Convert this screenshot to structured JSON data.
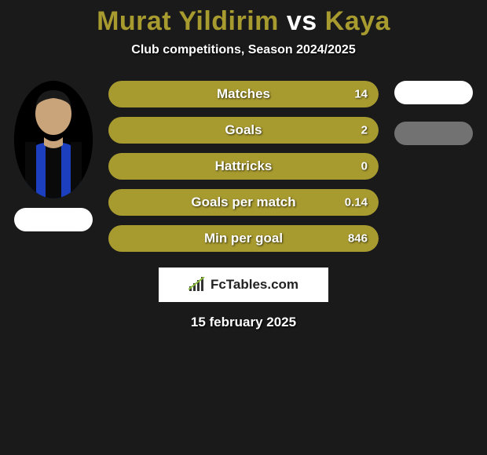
{
  "background_color": "#1a1a1a",
  "title": {
    "player1": "Murat Yildirim",
    "vs": "vs",
    "player2": "Kaya",
    "player1_color": "#a79a2f",
    "vs_color": "#ffffff",
    "player2_color": "#a79a2f",
    "fontsize": 34
  },
  "subtitle": {
    "text": "Club competitions, Season 2024/2025",
    "fontsize": 16,
    "color": "#ffffff"
  },
  "left_player": {
    "has_photo": true
  },
  "right_player": {
    "has_photo": false
  },
  "bar_style": {
    "height": 34,
    "radius": 17,
    "left_color": "#a79a2f",
    "right_color": "#a79a2f",
    "track_color": "#3a3a3a",
    "label_fontsize": 17,
    "value_fontsize": 15,
    "text_color": "#ffffff"
  },
  "stats": [
    {
      "label": "Matches",
      "left_value": "",
      "right_value": "14",
      "left_pct": 0,
      "right_pct": 100
    },
    {
      "label": "Goals",
      "left_value": "",
      "right_value": "2",
      "left_pct": 0,
      "right_pct": 100
    },
    {
      "label": "Hattricks",
      "left_value": "",
      "right_value": "0",
      "left_pct": 0,
      "right_pct": 100
    },
    {
      "label": "Goals per match",
      "left_value": "",
      "right_value": "0.14",
      "left_pct": 0,
      "right_pct": 100
    },
    {
      "label": "Min per goal",
      "left_value": "",
      "right_value": "846",
      "left_pct": 0,
      "right_pct": 100
    }
  ],
  "logo": {
    "text": "FcTables.com",
    "bg_color": "#ffffff",
    "text_color": "#222222",
    "fontsize": 17
  },
  "date": {
    "text": "15 february 2025",
    "fontsize": 17,
    "color": "#ffffff"
  },
  "placeholder_oval": {
    "bg": "#ffffff",
    "dimmed_opacity": 0.45
  }
}
